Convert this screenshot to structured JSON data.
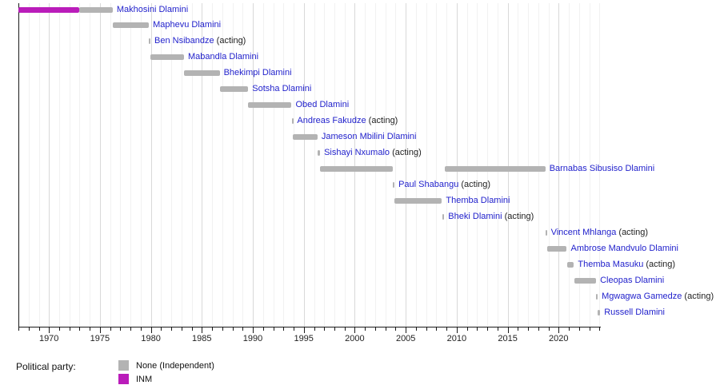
{
  "chart_data": {
    "type": "bar",
    "variant": "horizontal-timeline-gantt",
    "title": "",
    "x_axis": {
      "range": [
        1967.0,
        2024.1
      ],
      "major_ticks": [
        1970,
        1975,
        1980,
        1985,
        1990,
        1995,
        2000,
        2005,
        2010,
        2015,
        2020
      ],
      "minor_tick_interval": 1,
      "grid": true
    },
    "party_colors": {
      "None": "#b3b3b3",
      "INM": "#ba1cba"
    },
    "acting_suffix": " (acting)",
    "rows": [
      {
        "label": "Makhosini Dlamini",
        "acting": false,
        "segments": [
          {
            "start": 1967.0,
            "end": 1973.0,
            "party": "INM"
          },
          {
            "start": 1973.0,
            "end": 1976.25,
            "party": "None"
          }
        ]
      },
      {
        "label": "Maphevu Dlamini",
        "acting": false,
        "segments": [
          {
            "start": 1976.25,
            "end": 1979.8,
            "party": "None"
          }
        ]
      },
      {
        "label": "Ben Nsibandze",
        "acting": true,
        "segments": [
          {
            "start": 1979.8,
            "end": 1979.95,
            "party": "None"
          }
        ]
      },
      {
        "label": "Mabandla Dlamini",
        "acting": false,
        "segments": [
          {
            "start": 1979.95,
            "end": 1983.25,
            "party": "None"
          }
        ]
      },
      {
        "label": "Bhekimpi Dlamini",
        "acting": false,
        "segments": [
          {
            "start": 1983.25,
            "end": 1986.75,
            "party": "None"
          }
        ]
      },
      {
        "label": "Sotsha Dlamini",
        "acting": false,
        "segments": [
          {
            "start": 1986.75,
            "end": 1989.55,
            "party": "None"
          }
        ]
      },
      {
        "label": "Obed Dlamini",
        "acting": false,
        "segments": [
          {
            "start": 1989.55,
            "end": 1993.8,
            "party": "None"
          }
        ]
      },
      {
        "label": "Andreas Fakudze",
        "acting": true,
        "segments": [
          {
            "start": 1993.8,
            "end": 1993.95,
            "party": "None"
          }
        ]
      },
      {
        "label": "Jameson Mbilini Dlamini",
        "acting": false,
        "segments": [
          {
            "start": 1993.95,
            "end": 1996.35,
            "party": "None"
          }
        ]
      },
      {
        "label": "Sishayi Nxumalo",
        "acting": true,
        "segments": [
          {
            "start": 1996.35,
            "end": 1996.6,
            "party": "None"
          }
        ]
      },
      {
        "label": "Barnabas Sibusiso Dlamini",
        "acting": false,
        "segments": [
          {
            "start": 1996.6,
            "end": 2003.75,
            "party": "None"
          },
          {
            "start": 2008.82,
            "end": 2018.7,
            "party": "None"
          }
        ]
      },
      {
        "label": "Paul Shabangu",
        "acting": true,
        "segments": [
          {
            "start": 2003.75,
            "end": 2003.9,
            "party": "None"
          }
        ]
      },
      {
        "label": "Themba Dlamini",
        "acting": false,
        "segments": [
          {
            "start": 2003.9,
            "end": 2008.55,
            "party": "None"
          }
        ]
      },
      {
        "label": "Bheki Dlamini",
        "acting": true,
        "segments": [
          {
            "start": 2008.6,
            "end": 2008.78,
            "party": "None"
          }
        ]
      },
      {
        "label": "Vincent Mhlanga",
        "acting": true,
        "segments": [
          {
            "start": 2018.72,
            "end": 2018.85,
            "party": "None"
          }
        ]
      },
      {
        "label": "Ambrose Mandvulo Dlamini",
        "acting": false,
        "segments": [
          {
            "start": 2018.87,
            "end": 2020.8,
            "party": "None"
          }
        ]
      },
      {
        "label": "Themba Masuku",
        "acting": true,
        "segments": [
          {
            "start": 2020.85,
            "end": 2021.5,
            "party": "None"
          }
        ]
      },
      {
        "label": "Cleopas Dlamini",
        "acting": false,
        "segments": [
          {
            "start": 2021.55,
            "end": 2023.68,
            "party": "None"
          }
        ]
      },
      {
        "label": "Mgwagwa Gamedze",
        "acting": true,
        "segments": [
          {
            "start": 2023.7,
            "end": 2023.83,
            "party": "None"
          }
        ]
      },
      {
        "label": "Russell Dlamini",
        "acting": false,
        "segments": [
          {
            "start": 2023.85,
            "end": 2024.08,
            "party": "None"
          }
        ]
      }
    ],
    "legend": {
      "title": "Political party:",
      "entries": [
        {
          "label": "None (Independent)",
          "party": "None"
        },
        {
          "label": "INM",
          "party": "INM"
        }
      ]
    }
  },
  "colors": {
    "name_link_blue": "#2222cc",
    "acting_text": "#222222",
    "axis": "#1a1a1a",
    "grid_minor": "#f1f1f1",
    "grid_major": "#d9d9d9"
  }
}
